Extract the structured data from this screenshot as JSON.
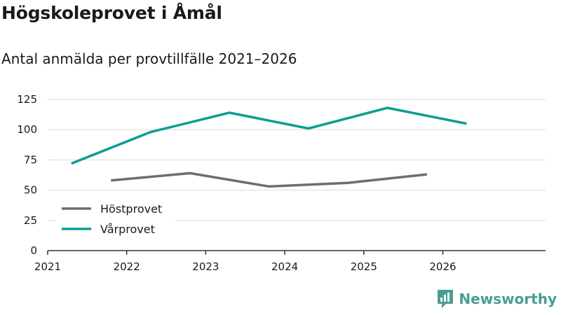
{
  "header": {
    "title": "Högskoleprovet i Åmål",
    "subtitle": "Antal anmälda per provtillfälle 2021–2026"
  },
  "brand": {
    "name": "Newsworthy",
    "color": "#4a9d94"
  },
  "chart_data": {
    "type": "line",
    "title": "Högskoleprovet i Åmål",
    "subtitle": "Antal anmälda per provtillfälle 2021–2026",
    "x_ticks": [
      "2021",
      "2022",
      "2023",
      "2024",
      "2025",
      "2026"
    ],
    "y_ticks": [
      "0",
      "25",
      "50",
      "75",
      "100",
      "125"
    ],
    "ylim": [
      0,
      125
    ],
    "xlim": [
      2021,
      2027.3
    ],
    "legend_position": "bottom-left",
    "series": [
      {
        "name": "Höstprovet",
        "color": "#6e6d74",
        "points": [
          {
            "x": 2021.8,
            "y": 58
          },
          {
            "x": 2022.8,
            "y": 64
          },
          {
            "x": 2023.8,
            "y": 53
          },
          {
            "x": 2024.8,
            "y": 56
          },
          {
            "x": 2025.8,
            "y": 63
          }
        ]
      },
      {
        "name": "Vårprovet",
        "color": "#0d9d93",
        "points": [
          {
            "x": 2021.3,
            "y": 72
          },
          {
            "x": 2022.3,
            "y": 98
          },
          {
            "x": 2023.3,
            "y": 114
          },
          {
            "x": 2024.3,
            "y": 101
          },
          {
            "x": 2025.3,
            "y": 118
          },
          {
            "x": 2026.3,
            "y": 105
          }
        ]
      }
    ]
  }
}
